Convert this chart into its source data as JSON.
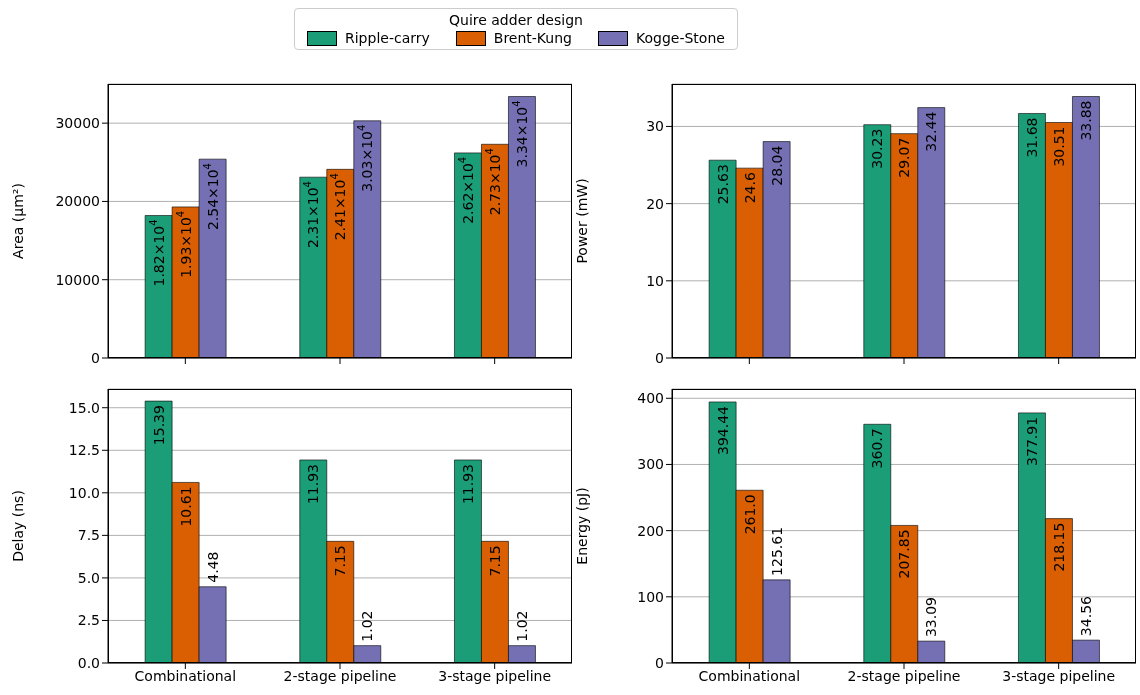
{
  "chart_data": [
    {
      "type": "bar",
      "ylabel": "Area (µm²)",
      "legend_title": "Quire adder design",
      "legend": "top",
      "grid": "y",
      "categories": [
        null,
        null,
        null
      ],
      "ylim": [
        0,
        35000
      ],
      "yticks": [
        0,
        10000,
        20000,
        30000
      ],
      "series": [
        {
          "name": "Ripple-carry",
          "color": "#1b9e77",
          "values": [
            18200,
            23100,
            26200
          ],
          "value_labels": [
            "1.82×10$^{4}$",
            "2.31×10$^{4}$",
            "2.62×10$^{4}$"
          ]
        },
        {
          "name": "Brent-Kung",
          "color": "#d95f02",
          "values": [
            19300,
            24100,
            27300
          ],
          "value_labels": [
            "1.93×10$^{4}$",
            "2.41×10$^{4}$",
            "2.73×10$^{4}$"
          ]
        },
        {
          "name": "Kogge-Stone",
          "color": "#7570b3",
          "values": [
            25400,
            30300,
            33400
          ],
          "value_labels": [
            "2.54×10$^{4}$",
            "3.03×10$^{4}$",
            "3.34×10$^{4}$"
          ]
        }
      ]
    },
    {
      "type": "bar",
      "ylabel": "Power (mW)",
      "grid": "y",
      "categories": [
        null,
        null,
        null
      ],
      "ylim": [
        0,
        35.5
      ],
      "yticks": [
        0,
        10,
        20,
        30
      ],
      "series": [
        {
          "color": "#1b9e77",
          "values": [
            25.63,
            30.23,
            31.68
          ],
          "value_labels": [
            "25.63",
            "30.23",
            "31.68"
          ]
        },
        {
          "color": "#d95f02",
          "values": [
            24.6,
            29.07,
            30.51
          ],
          "value_labels": [
            "24.6",
            "29.07",
            "30.51"
          ]
        },
        {
          "color": "#7570b3",
          "values": [
            28.04,
            32.44,
            33.88
          ],
          "value_labels": [
            "28.04",
            "32.44",
            "33.88"
          ]
        }
      ]
    },
    {
      "type": "bar",
      "ylabel": "Delay (ns)",
      "grid": "y",
      "categories": [
        "Combinational",
        "2-stage pipeline",
        "3-stage pipeline"
      ],
      "ylim": [
        0,
        16.1
      ],
      "yticks": [
        {
          "value": 0,
          "label": "0.0"
        },
        {
          "value": 2.5,
          "label": "2.5"
        },
        {
          "value": 5,
          "label": "5.0"
        },
        {
          "value": 7.5,
          "label": "7.5"
        },
        {
          "value": 10,
          "label": "10.0"
        },
        {
          "value": 12.5,
          "label": "12.5"
        },
        {
          "value": 15,
          "label": "15.0"
        }
      ],
      "series": [
        {
          "color": "#1b9e77",
          "values": [
            15.39,
            11.93,
            11.93
          ],
          "value_labels": [
            "15.39",
            "11.93",
            "11.93"
          ]
        },
        {
          "color": "#d95f02",
          "values": [
            10.61,
            7.15,
            7.15
          ],
          "value_labels": [
            "10.61",
            "7.15",
            "7.15"
          ]
        },
        {
          "color": "#7570b3",
          "values": [
            4.48,
            1.02,
            1.02
          ],
          "value_labels": [
            "4.48",
            "1.02",
            "1.02"
          ]
        }
      ]
    },
    {
      "type": "bar",
      "ylabel": "Energy (pJ)",
      "grid": "y",
      "categories": [
        "Combinational",
        "2-stage pipeline",
        "3-stage pipeline"
      ],
      "ylim": [
        0,
        414
      ],
      "yticks": [
        0,
        100,
        200,
        300,
        400
      ],
      "series": [
        {
          "color": "#1b9e77",
          "values": [
            394.44,
            360.7,
            377.91
          ],
          "value_labels": [
            "394.44",
            "360.7",
            "377.91"
          ]
        },
        {
          "color": "#d95f02",
          "values": [
            261.0,
            207.85,
            218.15
          ],
          "value_labels": [
            "261.0",
            "207.85",
            "218.15"
          ]
        },
        {
          "color": "#7570b3",
          "values": [
            125.61,
            33.09,
            34.56
          ],
          "value_labels": [
            "125.61",
            "33.09",
            "34.56"
          ]
        }
      ]
    }
  ]
}
